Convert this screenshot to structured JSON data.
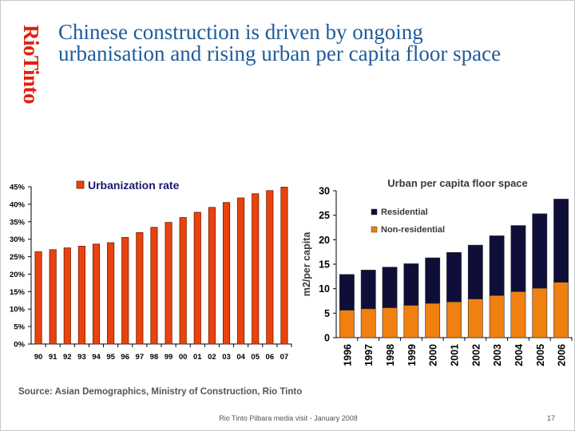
{
  "logo": {
    "text": "RioTinto"
  },
  "slide": {
    "title_line1": "Chinese construction is driven by ongoing",
    "title_line2": "urbanisation and rising urban per capita floor space",
    "source": "Source: Asian Demographics, Ministry of Construction, Rio Tinto",
    "footer": "Rio Tinto Pilbara media visit - January 2008",
    "page_number": "17"
  },
  "colors": {
    "title": "#1f5c99",
    "logo": "#e0200f",
    "urbanization_bar": "#e8430e",
    "residential": "#0e0e38",
    "non_residential": "#f08010"
  },
  "chart_data": [
    {
      "type": "bar",
      "title": "",
      "categories": [
        "90",
        "91",
        "92",
        "93",
        "94",
        "95",
        "96",
        "97",
        "98",
        "99",
        "00",
        "01",
        "02",
        "03",
        "04",
        "05",
        "06",
        "07"
      ],
      "series": [
        {
          "name": "Urbanization rate",
          "values": [
            26.4,
            27.0,
            27.5,
            28.0,
            28.6,
            29.0,
            30.5,
            31.9,
            33.4,
            34.8,
            36.2,
            37.7,
            39.1,
            40.5,
            41.8,
            43.0,
            43.9,
            44.9
          ]
        }
      ],
      "ylim": [
        0,
        45
      ],
      "yticks": [
        "0%",
        "5%",
        "10%",
        "15%",
        "20%",
        "25%",
        "30%",
        "35%",
        "40%",
        "45%"
      ],
      "xlabel": "",
      "ylabel": "",
      "grid": false,
      "legend": "top"
    },
    {
      "type": "bar",
      "stacked": true,
      "title": "Urban per capita floor space",
      "categories": [
        "1996",
        "1997",
        "1998",
        "1999",
        "2000",
        "2001",
        "2002",
        "2003",
        "2004",
        "2005",
        "2006"
      ],
      "series": [
        {
          "name": "Non-residential",
          "values": [
            5.6,
            5.9,
            6.1,
            6.6,
            7.0,
            7.3,
            7.9,
            8.6,
            9.4,
            10.1,
            11.3
          ]
        },
        {
          "name": "Residential",
          "values": [
            7.3,
            7.9,
            8.3,
            8.5,
            9.3,
            10.1,
            11.0,
            12.2,
            13.5,
            15.2,
            17.0
          ]
        }
      ],
      "ylim": [
        0,
        30
      ],
      "yticks": [
        "0",
        "5",
        "10",
        "15",
        "20",
        "25",
        "30"
      ],
      "xlabel": "",
      "ylabel": "m2/per capita",
      "grid": false,
      "legend": "top-left"
    }
  ]
}
